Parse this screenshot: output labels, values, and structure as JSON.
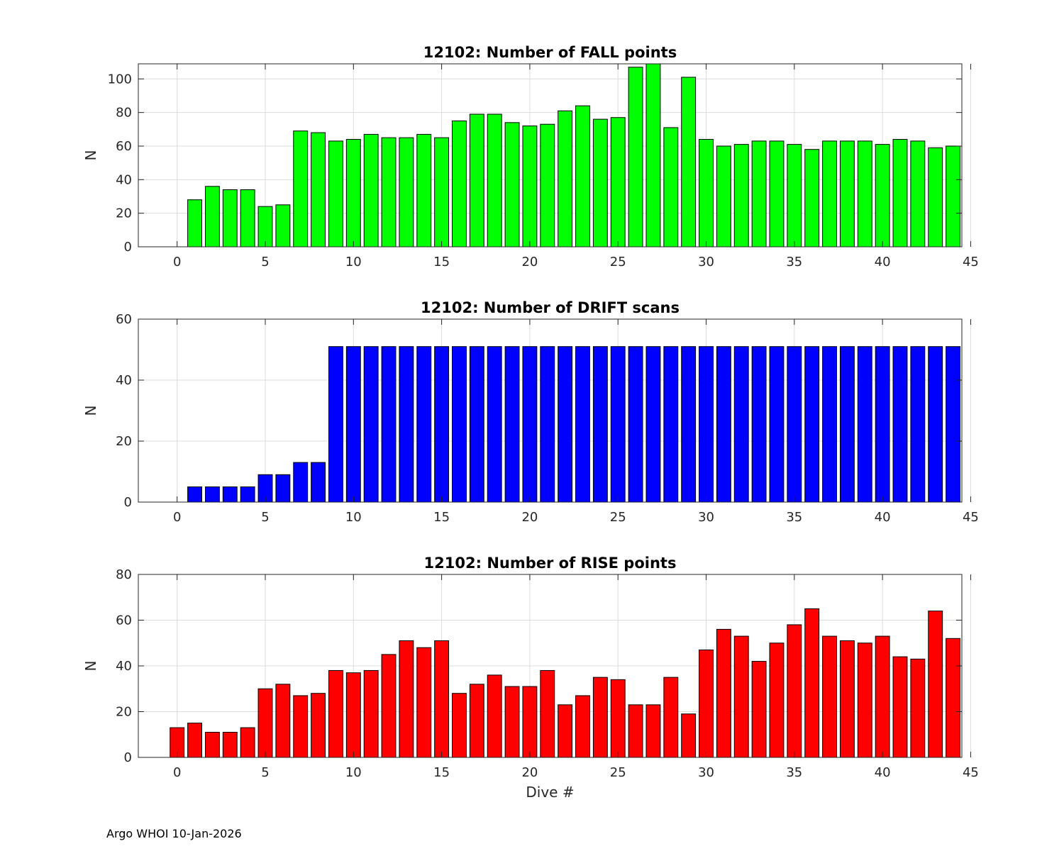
{
  "figure": {
    "footer": "Argo WHOI 10-Jan-2026"
  },
  "chart_data": [
    {
      "type": "bar",
      "title": "12102: Number of FALL points",
      "xlabel": "",
      "ylabel": "N",
      "xlim": [
        -2.2,
        44.5
      ],
      "ylim": [
        0,
        109
      ],
      "xticks": [
        0,
        5,
        10,
        15,
        20,
        25,
        30,
        35,
        40,
        45
      ],
      "yticks": [
        0,
        20,
        40,
        60,
        80,
        100
      ],
      "grid": true,
      "color": "#00ff00",
      "x": [
        1,
        2,
        3,
        4,
        5,
        6,
        7,
        8,
        9,
        10,
        11,
        12,
        13,
        14,
        15,
        16,
        17,
        18,
        19,
        20,
        21,
        22,
        23,
        24,
        25,
        26,
        27,
        28,
        29,
        30,
        31,
        32,
        33,
        34,
        35,
        36,
        37,
        38,
        39,
        40,
        41,
        42,
        43,
        44
      ],
      "values": [
        28,
        36,
        34,
        34,
        24,
        25,
        69,
        68,
        63,
        64,
        67,
        65,
        65,
        67,
        65,
        75,
        79,
        79,
        74,
        72,
        73,
        81,
        84,
        76,
        77,
        107,
        109,
        71,
        101,
        64,
        60,
        61,
        63,
        63,
        61,
        58,
        63,
        63,
        63,
        61,
        64,
        63,
        59,
        60
      ]
    },
    {
      "type": "bar",
      "title": "12102: Number of DRIFT scans",
      "xlabel": "",
      "ylabel": "N",
      "xlim": [
        -2.2,
        44.5
      ],
      "ylim": [
        0,
        60
      ],
      "xticks": [
        0,
        5,
        10,
        15,
        20,
        25,
        30,
        35,
        40,
        45
      ],
      "yticks": [
        0,
        20,
        40,
        60
      ],
      "grid": true,
      "color": "#0000ff",
      "x": [
        -1,
        0,
        1,
        2,
        3,
        4,
        5,
        6,
        7,
        8,
        9,
        10,
        11,
        12,
        13,
        14,
        15,
        16,
        17,
        18,
        19,
        20,
        21,
        22,
        23,
        24,
        25,
        26,
        27,
        28,
        29,
        30,
        31,
        32,
        33,
        34,
        35,
        36,
        37,
        38,
        39,
        40,
        41,
        42,
        43,
        44
      ],
      "values": [
        0,
        0,
        5,
        5,
        5,
        5,
        9,
        9,
        13,
        13,
        51,
        51,
        51,
        51,
        51,
        51,
        51,
        51,
        51,
        51,
        51,
        51,
        51,
        51,
        51,
        51,
        51,
        51,
        51,
        51,
        51,
        51,
        51,
        51,
        51,
        51,
        51,
        51,
        51,
        51,
        51,
        51,
        51,
        51,
        51,
        51
      ]
    },
    {
      "type": "bar",
      "title": "12102: Number of RISE points",
      "xlabel": "Dive #",
      "ylabel": "N",
      "xlim": [
        -2.2,
        44.5
      ],
      "ylim": [
        0,
        80
      ],
      "xticks": [
        0,
        5,
        10,
        15,
        20,
        25,
        30,
        35,
        40,
        45
      ],
      "yticks": [
        0,
        20,
        40,
        60,
        80
      ],
      "grid": true,
      "color": "#ff0000",
      "x": [
        0,
        1,
        2,
        3,
        4,
        5,
        6,
        7,
        8,
        9,
        10,
        11,
        12,
        13,
        14,
        15,
        16,
        17,
        18,
        19,
        20,
        21,
        22,
        23,
        24,
        25,
        26,
        27,
        28,
        29,
        30,
        31,
        32,
        33,
        34,
        35,
        36,
        37,
        38,
        39,
        40,
        41,
        42,
        43,
        44
      ],
      "values": [
        13,
        15,
        11,
        11,
        13,
        30,
        32,
        27,
        28,
        38,
        37,
        38,
        45,
        51,
        48,
        51,
        28,
        32,
        36,
        31,
        31,
        38,
        23,
        27,
        35,
        34,
        23,
        23,
        35,
        19,
        47,
        56,
        53,
        42,
        50,
        58,
        65,
        53,
        51,
        50,
        53,
        44,
        43,
        64,
        52
      ]
    }
  ]
}
